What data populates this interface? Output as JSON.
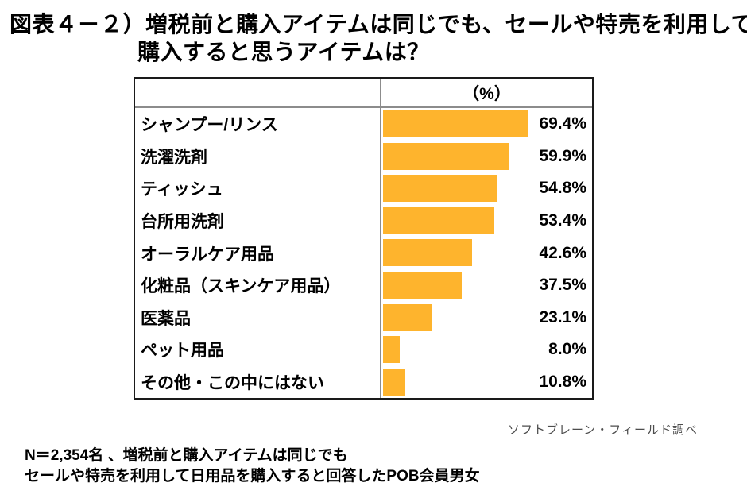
{
  "title": {
    "line1": "図表４－２）増税前と購入アイテムは同じでも、セールや特売を利用して",
    "line2": "購入すると思うアイテムは？"
  },
  "chart_data": {
    "type": "bar",
    "orientation": "horizontal",
    "header": "（%）",
    "categories": [
      "シャンプー/リンス",
      "洗濯洗剤",
      "ティッシュ",
      "台所用洗剤",
      "オーラルケア用品",
      "化粧品（スキンケア用品）",
      "医薬品",
      "ペット用品",
      "その他・この中にはない"
    ],
    "values": [
      69.4,
      59.9,
      54.8,
      53.4,
      42.6,
      37.5,
      23.1,
      8.0,
      10.8
    ],
    "value_labels": [
      "69.4%",
      "59.9%",
      "54.8%",
      "53.4%",
      "42.6%",
      "37.5%",
      "23.1%",
      "8.0%",
      "10.8%"
    ],
    "xlim": [
      0,
      100
    ],
    "bar_color": "#feb42d",
    "grid": false,
    "legend": false
  },
  "credit": "ソフトブレーン・フィールド調べ",
  "note": {
    "line1": "N＝2,354名 、増税前と購入アイテムは同じでも",
    "line2": "セールや特売を利用して日用品を購入すると回答したPOB会員男女"
  }
}
